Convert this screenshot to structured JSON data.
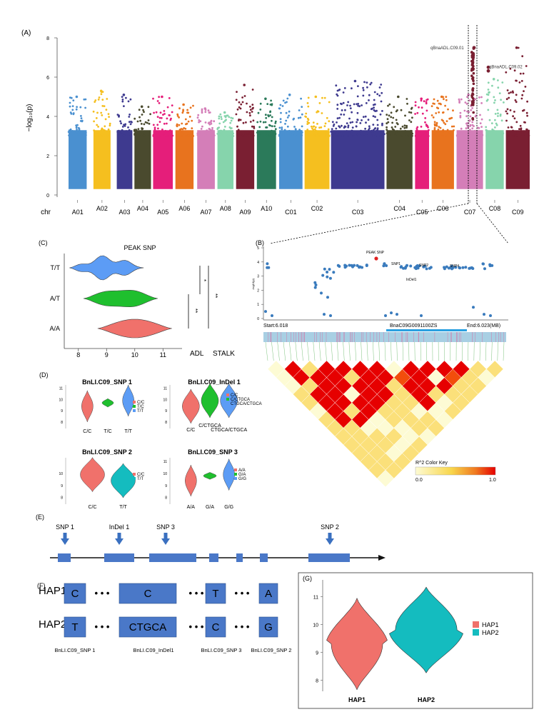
{
  "panel_labels": {
    "a": "(A)",
    "b": "(B)",
    "c": "(C)",
    "d": "(D)",
    "e": "(E)",
    "f": "(F)",
    "g": "(G)"
  },
  "chart_data": [
    {
      "id": "A",
      "type": "scatter",
      "title": "",
      "xlabel": "chr",
      "ylabel": "-log10(p)",
      "ylim": [
        0,
        8
      ],
      "yticks": [
        0,
        2,
        4,
        6,
        8
      ],
      "chromosomes": [
        "A01",
        "A02",
        "A03",
        "A04",
        "A05",
        "A06",
        "A07",
        "A08",
        "A09",
        "A10",
        "C01",
        "C02",
        "C03",
        "C04",
        "C05",
        "C06",
        "C07",
        "C08",
        "C09"
      ],
      "chrom_colors": [
        "#4a90d0",
        "#f5bf1f",
        "#3e3a8f",
        "#4a4a2e",
        "#e51e7a",
        "#e8731e",
        "#d47eb8",
        "#86d4ac",
        "#7a1f32",
        "#2b7a5a",
        "#4a90d0",
        "#f5bf1f",
        "#3e3a8f",
        "#4a4a2e",
        "#e51e7a",
        "#e8731e",
        "#d47eb8",
        "#86d4ac",
        "#7a1f32"
      ],
      "chrom_peak": [
        5.0,
        5.3,
        5.1,
        4.5,
        5.0,
        4.6,
        4.4,
        4.2,
        5.6,
        4.9,
        5.1,
        5.0,
        5.8,
        5.0,
        4.9,
        5.0,
        5.1,
        5.9,
        7.5
      ],
      "annotations": [
        "qBnaADL.C09.01",
        "qBnaADL.C09.02"
      ],
      "qtl_points": [
        {
          "label": "qBnaADL.C09.01",
          "y": 7.5
        },
        {
          "label": "qBnaADL.C09.02",
          "y": 6.5
        }
      ]
    },
    {
      "id": "B",
      "type": "scatter",
      "title": "",
      "ylabel": "-log10(p)",
      "yticks": [
        0,
        1,
        2,
        3,
        4,
        5
      ],
      "ylim": [
        0,
        5
      ],
      "xlim": [
        6.018,
        6.023
      ],
      "start_label": "Start:6.018",
      "end_label": "End:6.023(MB)",
      "gene_label": "BnaC09G0091100ZS",
      "annotations": [
        "PEAK SNP",
        "SNP1",
        "SNP2",
        "InDel1",
        "SNP4"
      ],
      "legend_title": "R^2 Color Key",
      "legend_min": "0.0",
      "legend_max": "1.0"
    },
    {
      "id": "C",
      "type": "violin",
      "title": "PEAK SNP",
      "categories": [
        "T/T",
        "A/T",
        "A/A"
      ],
      "colors": [
        "#5c9cf5",
        "#1fbf2e",
        "#f0716b"
      ],
      "center_values": [
        9.0,
        9.5,
        10.0
      ],
      "xticks": [
        8,
        9,
        10,
        11
      ],
      "xlim": [
        7.5,
        11.6
      ],
      "xlabel_1": "ADL",
      "xlabel_2": "STALK",
      "significance": [
        "*",
        "**",
        "**"
      ]
    },
    {
      "id": "D",
      "type": "violin",
      "subplots": [
        {
          "title": "BnLI.C09_SNP 1",
          "categories": [
            "C/C",
            "T/C",
            "T/T"
          ],
          "colors": [
            "#f0716b",
            "#1fbf2e",
            "#5c9cf5"
          ],
          "center_values": [
            9.4,
            9.7,
            9.9
          ],
          "yticks": [
            8,
            9,
            10,
            11
          ]
        },
        {
          "title": "BnLI.C09_InDel 1",
          "categories": [
            "C/C",
            "C/CTGCA",
            "CTGCA/CTGCA"
          ],
          "colors": [
            "#f0716b",
            "#1fbf2e",
            "#5c9cf5"
          ],
          "center_values": [
            9.4,
            9.9,
            9.9
          ],
          "yticks": [
            8,
            9,
            10,
            11
          ]
        },
        {
          "title": "BnLI.C09_SNP 2",
          "categories": [
            "C/C",
            "T/T"
          ],
          "colors": [
            "#f0716b",
            "#14bcbf"
          ],
          "center_values": [
            9.9,
            9.4
          ],
          "yticks": [
            8,
            9,
            10
          ]
        },
        {
          "title": "BnLI.C09_SNP 3",
          "categories": [
            "A/A",
            "G/A",
            "G/G"
          ],
          "colors": [
            "#f0716b",
            "#1fbf2e",
            "#5c9cf5"
          ],
          "center_values": [
            9.4,
            9.8,
            9.9
          ],
          "yticks": [
            8,
            9,
            10,
            11
          ]
        }
      ]
    },
    {
      "id": "G",
      "type": "violin",
      "categories": [
        "HAP1",
        "HAP2"
      ],
      "colors": [
        "#f0716b",
        "#14bcbf"
      ],
      "center_values": [
        9.3,
        9.8
      ],
      "yticks": [
        8,
        9,
        10,
        11
      ],
      "ylim": [
        7.6,
        11.6
      ]
    }
  ],
  "panel_d_legends": [
    [
      "C/C",
      "T/C",
      "T/T"
    ],
    [
      "C/C",
      "C/CTGCA",
      "CTGCA/CTGCA"
    ],
    [
      "C/C",
      "T/T"
    ],
    [
      "A/A",
      "G/A",
      "G/G"
    ]
  ],
  "panel_e": {
    "markers": [
      "SNP 1",
      "InDel 1",
      "SNP 3",
      "SNP  2"
    ]
  },
  "panel_f": {
    "rows": [
      {
        "label": "HAP1",
        "alleles": [
          "C",
          "C",
          "T",
          "A"
        ]
      },
      {
        "label": "HAP2",
        "alleles": [
          "T",
          "CTGCA",
          "C",
          "G"
        ]
      }
    ],
    "dots": "• • •",
    "marker_labels": [
      "BnLI.C09_SNP 1",
      "BnLI.C09_InDel1",
      "BnLI.C09_SNP 3",
      "BnLI.C09_SNP 2"
    ]
  },
  "panel_g_legend": [
    "HAP1",
    "HAP2"
  ],
  "colors": {
    "blue_box": "#4a78c8",
    "dark_red": "#7a1f32",
    "ld_red": "#e60000",
    "ld_yellow": "#fdfbd4"
  }
}
